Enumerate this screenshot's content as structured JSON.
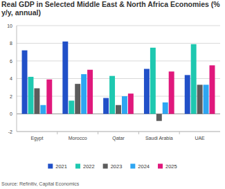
{
  "chart_data": {
    "type": "bar",
    "title": "Real GDP in Selected Middle East & North Africa Economies (% y/y, annual)",
    "source": "Source: Refinitiv, Capital Economics",
    "categories": [
      "Egypt",
      "Morocco",
      "Qatar",
      "Saudi Arabia",
      "UAE"
    ],
    "series": [
      {
        "name": "2021",
        "color": "#2150c8",
        "values": [
          7.2,
          8.2,
          1.8,
          5.1,
          4.4
        ]
      },
      {
        "name": "2022",
        "color": "#1ec8b0",
        "values": [
          4.2,
          1.5,
          4.3,
          7.5,
          7.9
        ]
      },
      {
        "name": "2023",
        "color": "#5c5c5c",
        "values": [
          2.9,
          3.4,
          1.0,
          -0.8,
          3.3
        ]
      },
      {
        "name": "2024",
        "color": "#2ea6f2",
        "values": [
          1.0,
          4.5,
          2.0,
          1.3,
          3.3
        ]
      },
      {
        "name": "2025",
        "color": "#e0187c",
        "values": [
          3.9,
          5.0,
          2.3,
          4.8,
          5.5
        ]
      }
    ],
    "ylim": [
      -2,
      10
    ],
    "yticks": [
      -2,
      0,
      2,
      4,
      6,
      8,
      10
    ],
    "grid": true,
    "legend": "bottom"
  }
}
